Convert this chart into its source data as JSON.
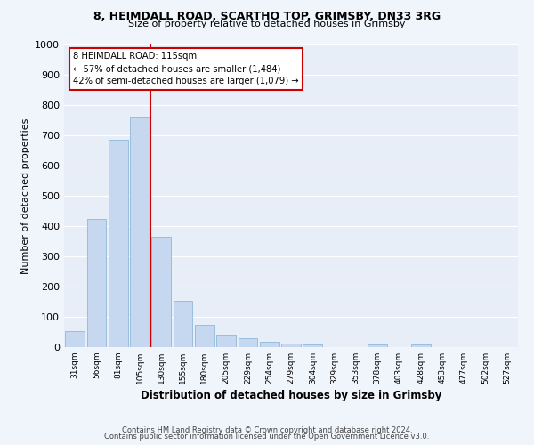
{
  "title1": "8, HEIMDALL ROAD, SCARTHO TOP, GRIMSBY, DN33 3RG",
  "title2": "Size of property relative to detached houses in Grimsby",
  "xlabel": "Distribution of detached houses by size in Grimsby",
  "ylabel": "Number of detached properties",
  "categories": [
    "31sqm",
    "56sqm",
    "81sqm",
    "105sqm",
    "130sqm",
    "155sqm",
    "180sqm",
    "205sqm",
    "229sqm",
    "254sqm",
    "279sqm",
    "304sqm",
    "329sqm",
    "353sqm",
    "378sqm",
    "403sqm",
    "428sqm",
    "453sqm",
    "477sqm",
    "502sqm",
    "527sqm"
  ],
  "values": [
    52,
    425,
    685,
    760,
    365,
    153,
    75,
    42,
    30,
    17,
    12,
    8,
    0,
    0,
    8,
    0,
    10,
    0,
    0,
    0,
    0
  ],
  "bar_color": "#c5d8f0",
  "bar_edge_color": "#8fb8d8",
  "vline_color": "#cc0000",
  "vline_x": 3.5,
  "annotation_title": "8 HEIMDALL ROAD: 115sqm",
  "annotation_line1": "← 57% of detached houses are smaller (1,484)",
  "annotation_line2": "42% of semi-detached houses are larger (1,079) →",
  "annotation_box_facecolor": "#ffffff",
  "annotation_box_edgecolor": "#cc0000",
  "ylim": [
    0,
    1000
  ],
  "yticks": [
    0,
    100,
    200,
    300,
    400,
    500,
    600,
    700,
    800,
    900,
    1000
  ],
  "fig_facecolor": "#f0f4fb",
  "ax_facecolor": "#e8eef8",
  "grid_color": "#ffffff",
  "footer1": "Contains HM Land Registry data © Crown copyright and database right 2024.",
  "footer2": "Contains public sector information licensed under the Open Government Licence v3.0."
}
